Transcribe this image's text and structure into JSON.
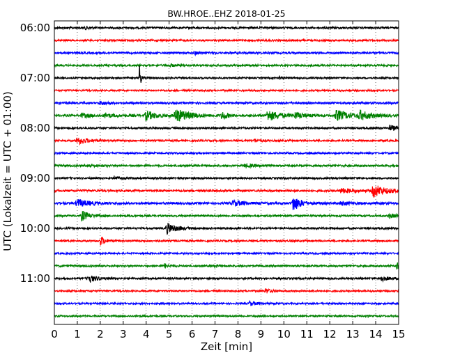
{
  "chart_data": {
    "type": "line",
    "title": "BW.HROE..EHZ 2018-01-25",
    "xlabel": "Zeit  [min]",
    "ylabel": "UTC (Lokalzeit = UTC + 01:00)",
    "xlim": [
      0,
      15
    ],
    "x_ticks": [
      "0",
      "1",
      "2",
      "3",
      "4",
      "5",
      "6",
      "7",
      "8",
      "9",
      "10",
      "11",
      "12",
      "13",
      "14",
      "15"
    ],
    "y_tick_labels": [
      "06:00",
      "07:00",
      "08:00",
      "09:00",
      "10:00",
      "11:00"
    ],
    "grid": "vertical dotted",
    "colors": [
      "#000000",
      "#ff0000",
      "#0000ff",
      "#008000"
    ],
    "traces": [
      {
        "start": "06:00",
        "color": "#000000",
        "noise": 1.4,
        "events": [
          {
            "t": 1.35,
            "amp": 2.0,
            "dur": 0.2
          }
        ]
      },
      {
        "start": "06:15",
        "color": "#ff0000",
        "noise": 1.3,
        "events": []
      },
      {
        "start": "06:30",
        "color": "#0000ff",
        "noise": 1.4,
        "events": [
          {
            "t": 6.1,
            "amp": 2.5,
            "dur": 0.2
          }
        ]
      },
      {
        "start": "06:45",
        "color": "#008000",
        "noise": 1.3,
        "events": [
          {
            "t": 5.0,
            "amp": 2.2,
            "dur": 0.2
          }
        ]
      },
      {
        "start": "07:00",
        "color": "#000000",
        "noise": 1.2,
        "events": [
          {
            "t": 3.7,
            "amp": 27.0,
            "dur": 0.05
          },
          {
            "t": 9.8,
            "amp": 2.8,
            "dur": 0.1
          }
        ]
      },
      {
        "start": "07:15",
        "color": "#ff0000",
        "noise": 1.2,
        "events": []
      },
      {
        "start": "07:30",
        "color": "#0000ff",
        "noise": 1.4,
        "events": [
          {
            "t": 2.0,
            "amp": 2.5,
            "dur": 0.3
          }
        ]
      },
      {
        "start": "07:45",
        "color": "#008000",
        "noise": 1.6,
        "events": [
          {
            "t": 1.2,
            "amp": 3.0,
            "dur": 0.3
          },
          {
            "t": 2.2,
            "amp": 3.5,
            "dur": 0.3
          },
          {
            "t": 4.0,
            "amp": 6.5,
            "dur": 0.4
          },
          {
            "t": 5.3,
            "amp": 9.0,
            "dur": 0.6
          },
          {
            "t": 7.3,
            "amp": 6.5,
            "dur": 0.2
          },
          {
            "t": 9.3,
            "amp": 7.5,
            "dur": 0.5
          },
          {
            "t": 10.5,
            "amp": 4.0,
            "dur": 0.4
          },
          {
            "t": 12.3,
            "amp": 7.0,
            "dur": 0.6
          },
          {
            "t": 13.3,
            "amp": 6.0,
            "dur": 0.4
          }
        ]
      },
      {
        "start": "08:00",
        "color": "#000000",
        "noise": 1.3,
        "events": [
          {
            "t": 14.6,
            "amp": 4.0,
            "dur": 0.3
          }
        ]
      },
      {
        "start": "08:15",
        "color": "#ff0000",
        "noise": 1.3,
        "events": [
          {
            "t": 1.0,
            "amp": 5.5,
            "dur": 0.4
          },
          {
            "t": 8.7,
            "amp": 2.0,
            "dur": 0.3
          }
        ]
      },
      {
        "start": "08:30",
        "color": "#0000ff",
        "noise": 1.2,
        "events": []
      },
      {
        "start": "08:45",
        "color": "#008000",
        "noise": 1.4,
        "events": [
          {
            "t": 1.5,
            "amp": 2.2,
            "dur": 0.3
          },
          {
            "t": 8.3,
            "amp": 2.8,
            "dur": 0.3
          }
        ]
      },
      {
        "start": "09:00",
        "color": "#000000",
        "noise": 1.3,
        "events": [
          {
            "t": 2.6,
            "amp": 3.2,
            "dur": 0.2
          }
        ]
      },
      {
        "start": "09:15",
        "color": "#ff0000",
        "noise": 1.5,
        "events": [
          {
            "t": 12.5,
            "amp": 3.0,
            "dur": 0.6
          },
          {
            "t": 13.9,
            "amp": 9.0,
            "dur": 0.5
          }
        ]
      },
      {
        "start": "09:30",
        "color": "#0000ff",
        "noise": 1.6,
        "events": [
          {
            "t": 1.0,
            "amp": 5.5,
            "dur": 0.5
          },
          {
            "t": 7.8,
            "amp": 4.0,
            "dur": 0.4
          },
          {
            "t": 10.4,
            "amp": 11.5,
            "dur": 0.3
          },
          {
            "t": 12.5,
            "amp": 2.5,
            "dur": 0.4
          }
        ]
      },
      {
        "start": "09:45",
        "color": "#008000",
        "noise": 1.3,
        "events": [
          {
            "t": 1.2,
            "amp": 7.5,
            "dur": 0.3
          },
          {
            "t": 14.6,
            "amp": 3.0,
            "dur": 0.3
          }
        ]
      },
      {
        "start": "10:00",
        "color": "#000000",
        "noise": 1.3,
        "events": [
          {
            "t": 4.9,
            "amp": 7.5,
            "dur": 0.4
          }
        ]
      },
      {
        "start": "10:15",
        "color": "#ff0000",
        "noise": 1.3,
        "events": [
          {
            "t": 2.0,
            "amp": 6.5,
            "dur": 0.2
          }
        ]
      },
      {
        "start": "10:30",
        "color": "#0000ff",
        "noise": 1.2,
        "events": []
      },
      {
        "start": "10:45",
        "color": "#008000",
        "noise": 1.3,
        "events": [
          {
            "t": 4.8,
            "amp": 3.0,
            "dur": 0.2
          },
          {
            "t": 7.0,
            "amp": 3.0,
            "dur": 0.1
          },
          {
            "t": 14.9,
            "amp": 5.0,
            "dur": 0.2
          }
        ]
      },
      {
        "start": "11:00",
        "color": "#000000",
        "noise": 1.3,
        "events": [
          {
            "t": 1.5,
            "amp": 6.0,
            "dur": 0.3
          },
          {
            "t": 14.2,
            "amp": 4.0,
            "dur": 0.3
          }
        ]
      },
      {
        "start": "11:15",
        "color": "#ff0000",
        "noise": 1.2,
        "events": [
          {
            "t": 9.2,
            "amp": 4.0,
            "dur": 0.2
          }
        ]
      },
      {
        "start": "11:30",
        "color": "#0000ff",
        "noise": 1.2,
        "events": [
          {
            "t": 8.5,
            "amp": 3.0,
            "dur": 0.3
          }
        ]
      },
      {
        "start": "11:45",
        "color": "#008000",
        "noise": 1.2,
        "events": []
      }
    ]
  }
}
